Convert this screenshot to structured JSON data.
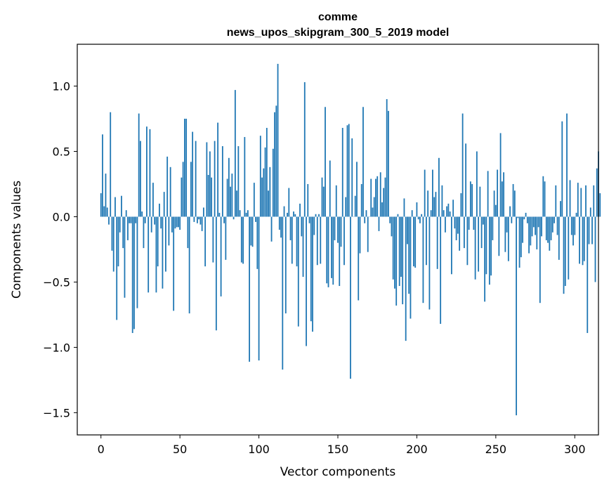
{
  "chart_data": {
    "type": "bar",
    "title": "comme",
    "subtitle": "news_upos_skipgram_300_5_2019 model",
    "xlabel": "Vector components",
    "ylabel": "Components values",
    "xlim": [
      -15,
      315
    ],
    "ylim": [
      -1.67,
      1.32
    ],
    "x_ticks": [
      0,
      50,
      100,
      150,
      200,
      250,
      300
    ],
    "x_tick_labels": [
      "0",
      "50",
      "100",
      "150",
      "200",
      "250",
      "300"
    ],
    "y_ticks": [
      1.0,
      0.5,
      0.0,
      -0.5,
      -1.0,
      -1.5
    ],
    "y_tick_labels": [
      "1.0",
      "0.5",
      "0.0",
      "−0.5",
      "−1.0",
      "−1.5"
    ],
    "grid": false,
    "bar_color": "#1f77b4",
    "values": [
      0.18,
      0.63,
      0.08,
      0.33,
      0.07,
      -0.06,
      0.8,
      -0.26,
      -0.42,
      0.15,
      -0.79,
      -0.38,
      -0.12,
      0.16,
      -0.24,
      -0.62,
      0.05,
      -0.18,
      -0.05,
      -0.05,
      -0.89,
      -0.86,
      -0.05,
      -0.7,
      0.79,
      0.58,
      0.04,
      -0.24,
      -0.05,
      0.69,
      -0.58,
      0.67,
      -0.12,
      0.26,
      -0.06,
      -0.58,
      -0.38,
      0.1,
      -0.09,
      -0.55,
      0.19,
      -0.42,
      0.46,
      -0.22,
      0.38,
      -0.12,
      -0.72,
      -0.09,
      -0.08,
      -0.08,
      -0.1,
      0.3,
      0.42,
      0.75,
      0.75,
      -0.24,
      -0.74,
      0.42,
      0.65,
      -0.04,
      0.58,
      -0.05,
      -0.02,
      -0.06,
      -0.11,
      0.07,
      -0.38,
      0.57,
      0.32,
      0.5,
      0.3,
      -0.35,
      0.58,
      -0.87,
      0.72,
      0.03,
      -0.61,
      0.54,
      -0.05,
      -0.33,
      0.29,
      0.45,
      0.23,
      0.33,
      -0.02,
      0.97,
      0.2,
      0.54,
      0.05,
      -0.35,
      -0.36,
      0.61,
      0.03,
      0.05,
      -1.11,
      -0.22,
      -0.23,
      0.26,
      -0.04,
      -0.4,
      -1.1,
      0.62,
      0.3,
      0.37,
      0.53,
      0.68,
      0.2,
      0.38,
      -0.19,
      0.52,
      0.8,
      0.85,
      1.17,
      -0.1,
      -0.16,
      -1.17,
      0.08,
      -0.74,
      0.03,
      0.22,
      -0.18,
      -0.36,
      0.04,
      0.02,
      -0.38,
      -0.84,
      0.1,
      -0.15,
      -0.46,
      1.03,
      -0.99,
      0.25,
      -0.05,
      -0.8,
      -0.88,
      -0.14,
      0.02,
      -0.37,
      0.02,
      -0.36,
      0.3,
      0.23,
      0.84,
      -0.51,
      -0.54,
      0.43,
      -0.47,
      -0.52,
      -0.18,
      0.24,
      -0.2,
      -0.53,
      -0.23,
      0.68,
      -0.37,
      0.15,
      0.7,
      0.71,
      -1.24,
      0.6,
      0.0,
      0.16,
      0.42,
      -0.64,
      -0.28,
      0.25,
      0.84,
      -0.05,
      0.05,
      -0.27,
      0.0,
      0.29,
      0.07,
      0.15,
      0.29,
      0.31,
      -0.11,
      0.34,
      0.11,
      0.22,
      0.3,
      0.9,
      0.81,
      -0.05,
      -0.15,
      -0.48,
      -0.55,
      -0.68,
      0.02,
      -0.53,
      -0.46,
      -0.67,
      0.14,
      -0.95,
      -0.21,
      -0.59,
      -0.78,
      0.05,
      -0.38,
      -0.39,
      0.11,
      -0.02,
      -0.05,
      0.02,
      -0.66,
      0.36,
      -0.37,
      0.2,
      -0.71,
      0.05,
      0.36,
      0.15,
      0.19,
      -0.4,
      0.45,
      -0.82,
      0.24,
      0.05,
      -0.12,
      0.08,
      0.1,
      0.04,
      -0.44,
      0.13,
      -0.09,
      -0.18,
      -0.13,
      -0.26,
      0.18,
      0.79,
      -0.24,
      0.56,
      -0.37,
      -0.1,
      0.27,
      0.25,
      -0.1,
      -0.48,
      0.5,
      -0.42,
      0.23,
      -0.24,
      -0.06,
      -0.65,
      -0.44,
      0.35,
      -0.52,
      -0.45,
      -0.18,
      0.2,
      0.09,
      0.36,
      -0.3,
      0.64,
      0.27,
      0.34,
      -0.27,
      -0.12,
      -0.34,
      0.08,
      -0.05,
      0.25,
      0.2,
      -1.52,
      -0.01,
      -0.39,
      -0.31,
      -0.2,
      -0.02,
      0.03,
      -0.05,
      -0.28,
      -0.22,
      -0.15,
      -0.08,
      -0.14,
      -0.25,
      -0.08,
      -0.66,
      -0.15,
      0.31,
      0.27,
      -0.18,
      -0.2,
      -0.26,
      -0.18,
      -0.12,
      -0.05,
      0.24,
      -0.14,
      -0.33,
      0.12,
      0.73,
      -0.59,
      -0.53,
      0.79,
      -0.48,
      0.28,
      -0.14,
      -0.22,
      -0.14,
      0.03,
      0.26,
      -0.36,
      0.22,
      -0.37,
      -0.34,
      0.24,
      -0.89,
      -0.21,
      0.07,
      -0.21,
      0.24,
      -0.5,
      0.37,
      0.5,
      0.18
    ]
  }
}
